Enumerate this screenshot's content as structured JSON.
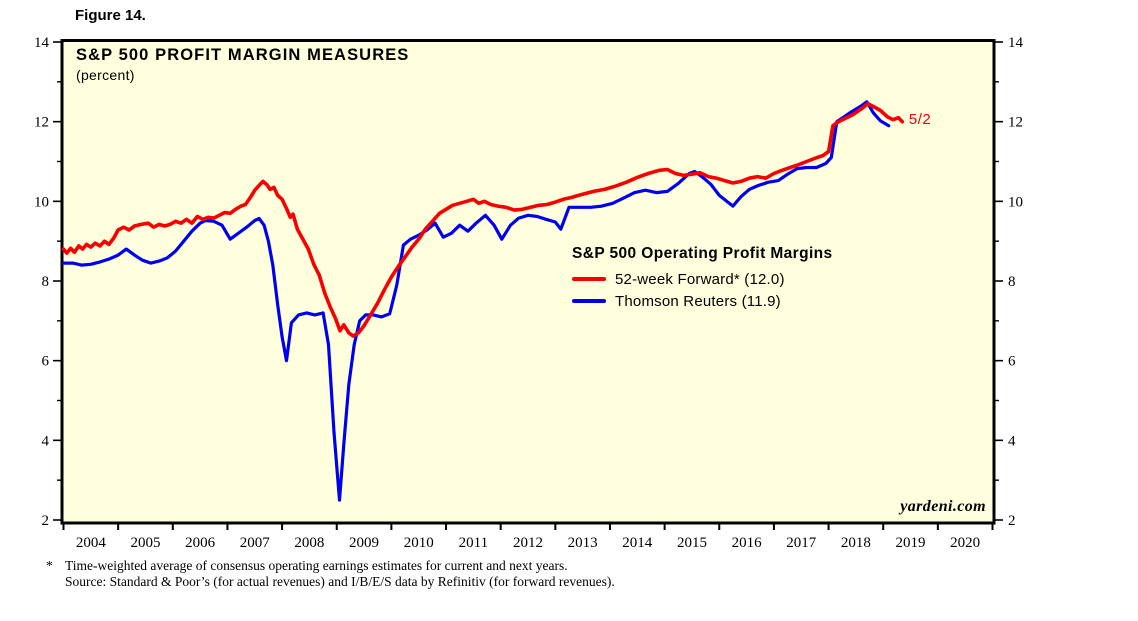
{
  "figure_label": "Figure 14.",
  "chart": {
    "title": "S&P 500 PROFIT MARGIN MEASURES",
    "subtitle": "(percent)",
    "watermark": "yardeni.com",
    "legend": {
      "title": "S&P 500 Operating Profit Margins",
      "items": [
        {
          "label": "52-week Forward* (12.0)"
        },
        {
          "label": "Thomson Reuters (11.9)"
        }
      ]
    }
  },
  "footnotes": [
    {
      "marker": "*",
      "text": "Time-weighted average of consensus operating earnings estimates for current and next years."
    },
    {
      "marker": "",
      "text": "Source: Standard & Poor’s (for actual revenues) and I/B/E/S data by Refinitiv (for forward revenues)."
    }
  ],
  "chart_data": {
    "type": "line",
    "title": "S&P 500 PROFIT MARGIN MEASURES",
    "ylabel": "percent",
    "x_range": [
      2004,
      2021
    ],
    "ylim": [
      2,
      14
    ],
    "grid": false,
    "plot_background": "#FFFFDE",
    "border_color": "#000000",
    "y_major_ticks": [
      2,
      4,
      6,
      8,
      10,
      12,
      14
    ],
    "y_minor_ticks": [
      3,
      5,
      7,
      9,
      11,
      13
    ],
    "x_tick_years": [
      "2004",
      "2005",
      "2006",
      "2007",
      "2008",
      "2009",
      "2010",
      "2011",
      "2012",
      "2013",
      "2014",
      "2015",
      "2016",
      "2017",
      "2018",
      "2019",
      "2020"
    ],
    "legend_position": "center-right",
    "annotation": {
      "text": "5/2",
      "x": 2019.47,
      "y": 12.05,
      "color": "#F80000"
    },
    "series": [
      {
        "id": "forward",
        "name": "52-week Forward* (12.0)",
        "color": "#F80000",
        "width": 3.6,
        "last_value": 12.0,
        "points": [
          [
            2004.0,
            8.8
          ],
          [
            2004.06,
            8.7
          ],
          [
            2004.13,
            8.82
          ],
          [
            2004.2,
            8.72
          ],
          [
            2004.28,
            8.88
          ],
          [
            2004.35,
            8.8
          ],
          [
            2004.42,
            8.92
          ],
          [
            2004.5,
            8.85
          ],
          [
            2004.58,
            8.95
          ],
          [
            2004.67,
            8.88
          ],
          [
            2004.75,
            9.0
          ],
          [
            2004.83,
            8.92
          ],
          [
            2004.92,
            9.08
          ],
          [
            2005.0,
            9.28
          ],
          [
            2005.1,
            9.35
          ],
          [
            2005.2,
            9.28
          ],
          [
            2005.3,
            9.38
          ],
          [
            2005.42,
            9.42
          ],
          [
            2005.55,
            9.45
          ],
          [
            2005.65,
            9.35
          ],
          [
            2005.75,
            9.42
          ],
          [
            2005.85,
            9.38
          ],
          [
            2005.95,
            9.42
          ],
          [
            2006.05,
            9.5
          ],
          [
            2006.15,
            9.45
          ],
          [
            2006.25,
            9.55
          ],
          [
            2006.35,
            9.45
          ],
          [
            2006.45,
            9.62
          ],
          [
            2006.55,
            9.55
          ],
          [
            2006.65,
            9.6
          ],
          [
            2006.75,
            9.58
          ],
          [
            2006.85,
            9.65
          ],
          [
            2006.95,
            9.72
          ],
          [
            2007.05,
            9.7
          ],
          [
            2007.15,
            9.8
          ],
          [
            2007.25,
            9.88
          ],
          [
            2007.33,
            9.92
          ],
          [
            2007.42,
            10.1
          ],
          [
            2007.5,
            10.28
          ],
          [
            2007.58,
            10.4
          ],
          [
            2007.65,
            10.5
          ],
          [
            2007.72,
            10.42
          ],
          [
            2007.78,
            10.3
          ],
          [
            2007.85,
            10.35
          ],
          [
            2007.92,
            10.15
          ],
          [
            2008.0,
            10.05
          ],
          [
            2008.08,
            9.82
          ],
          [
            2008.15,
            9.6
          ],
          [
            2008.2,
            9.68
          ],
          [
            2008.28,
            9.3
          ],
          [
            2008.38,
            9.05
          ],
          [
            2008.48,
            8.8
          ],
          [
            2008.58,
            8.42
          ],
          [
            2008.68,
            8.15
          ],
          [
            2008.78,
            7.7
          ],
          [
            2008.88,
            7.35
          ],
          [
            2008.98,
            7.05
          ],
          [
            2009.06,
            6.75
          ],
          [
            2009.13,
            6.9
          ],
          [
            2009.22,
            6.7
          ],
          [
            2009.3,
            6.62
          ],
          [
            2009.4,
            6.7
          ],
          [
            2009.5,
            6.88
          ],
          [
            2009.62,
            7.15
          ],
          [
            2009.75,
            7.45
          ],
          [
            2009.88,
            7.8
          ],
          [
            2010.0,
            8.1
          ],
          [
            2010.12,
            8.35
          ],
          [
            2010.25,
            8.6
          ],
          [
            2010.38,
            8.85
          ],
          [
            2010.5,
            9.05
          ],
          [
            2010.62,
            9.3
          ],
          [
            2010.75,
            9.5
          ],
          [
            2010.88,
            9.7
          ],
          [
            2011.0,
            9.8
          ],
          [
            2011.12,
            9.9
          ],
          [
            2011.25,
            9.95
          ],
          [
            2011.38,
            10.0
          ],
          [
            2011.5,
            10.05
          ],
          [
            2011.6,
            9.95
          ],
          [
            2011.7,
            10.0
          ],
          [
            2011.82,
            9.92
          ],
          [
            2011.95,
            9.88
          ],
          [
            2012.1,
            9.85
          ],
          [
            2012.25,
            9.78
          ],
          [
            2012.4,
            9.8
          ],
          [
            2012.55,
            9.85
          ],
          [
            2012.7,
            9.9
          ],
          [
            2012.85,
            9.92
          ],
          [
            2013.0,
            9.98
          ],
          [
            2013.15,
            10.05
          ],
          [
            2013.3,
            10.1
          ],
          [
            2013.5,
            10.18
          ],
          [
            2013.7,
            10.25
          ],
          [
            2013.9,
            10.3
          ],
          [
            2014.1,
            10.38
          ],
          [
            2014.3,
            10.48
          ],
          [
            2014.5,
            10.6
          ],
          [
            2014.7,
            10.7
          ],
          [
            2014.9,
            10.78
          ],
          [
            2015.05,
            10.8
          ],
          [
            2015.2,
            10.7
          ],
          [
            2015.35,
            10.65
          ],
          [
            2015.5,
            10.68
          ],
          [
            2015.65,
            10.72
          ],
          [
            2015.8,
            10.62
          ],
          [
            2015.95,
            10.58
          ],
          [
            2016.1,
            10.52
          ],
          [
            2016.25,
            10.46
          ],
          [
            2016.4,
            10.5
          ],
          [
            2016.55,
            10.58
          ],
          [
            2016.7,
            10.62
          ],
          [
            2016.85,
            10.58
          ],
          [
            2017.0,
            10.7
          ],
          [
            2017.15,
            10.78
          ],
          [
            2017.3,
            10.85
          ],
          [
            2017.45,
            10.92
          ],
          [
            2017.6,
            11.0
          ],
          [
            2017.75,
            11.08
          ],
          [
            2017.9,
            11.15
          ],
          [
            2018.0,
            11.25
          ],
          [
            2018.08,
            11.9
          ],
          [
            2018.18,
            12.0
          ],
          [
            2018.3,
            12.08
          ],
          [
            2018.45,
            12.18
          ],
          [
            2018.6,
            12.32
          ],
          [
            2018.72,
            12.45
          ],
          [
            2018.82,
            12.38
          ],
          [
            2018.95,
            12.28
          ],
          [
            2019.08,
            12.12
          ],
          [
            2019.18,
            12.05
          ],
          [
            2019.28,
            12.1
          ],
          [
            2019.35,
            12.0
          ]
        ]
      },
      {
        "id": "thomson",
        "name": "Thomson Reuters (11.9)",
        "color": "#0000F0",
        "width": 3.2,
        "last_value": 11.9,
        "points": [
          [
            2004.0,
            8.45
          ],
          [
            2004.17,
            8.45
          ],
          [
            2004.33,
            8.4
          ],
          [
            2004.5,
            8.42
          ],
          [
            2004.67,
            8.48
          ],
          [
            2004.83,
            8.55
          ],
          [
            2005.0,
            8.65
          ],
          [
            2005.15,
            8.8
          ],
          [
            2005.3,
            8.65
          ],
          [
            2005.45,
            8.52
          ],
          [
            2005.6,
            8.45
          ],
          [
            2005.75,
            8.5
          ],
          [
            2005.9,
            8.58
          ],
          [
            2006.05,
            8.75
          ],
          [
            2006.2,
            9.0
          ],
          [
            2006.35,
            9.25
          ],
          [
            2006.5,
            9.45
          ],
          [
            2006.6,
            9.52
          ],
          [
            2006.75,
            9.5
          ],
          [
            2006.9,
            9.4
          ],
          [
            2007.05,
            9.05
          ],
          [
            2007.2,
            9.2
          ],
          [
            2007.35,
            9.35
          ],
          [
            2007.5,
            9.52
          ],
          [
            2007.58,
            9.57
          ],
          [
            2007.67,
            9.4
          ],
          [
            2007.75,
            9.0
          ],
          [
            2007.83,
            8.4
          ],
          [
            2007.92,
            7.4
          ],
          [
            2008.0,
            6.6
          ],
          [
            2008.08,
            6.0
          ],
          [
            2008.17,
            6.95
          ],
          [
            2008.3,
            7.15
          ],
          [
            2008.45,
            7.2
          ],
          [
            2008.6,
            7.15
          ],
          [
            2008.75,
            7.2
          ],
          [
            2008.85,
            6.4
          ],
          [
            2008.95,
            4.2
          ],
          [
            2009.05,
            2.5
          ],
          [
            2009.13,
            3.9
          ],
          [
            2009.22,
            5.4
          ],
          [
            2009.32,
            6.4
          ],
          [
            2009.42,
            7.0
          ],
          [
            2009.53,
            7.15
          ],
          [
            2009.67,
            7.15
          ],
          [
            2009.82,
            7.1
          ],
          [
            2009.97,
            7.18
          ],
          [
            2010.1,
            7.9
          ],
          [
            2010.22,
            8.9
          ],
          [
            2010.35,
            9.05
          ],
          [
            2010.5,
            9.15
          ],
          [
            2010.65,
            9.28
          ],
          [
            2010.8,
            9.45
          ],
          [
            2010.95,
            9.1
          ],
          [
            2011.1,
            9.2
          ],
          [
            2011.25,
            9.4
          ],
          [
            2011.4,
            9.25
          ],
          [
            2011.55,
            9.45
          ],
          [
            2011.72,
            9.65
          ],
          [
            2011.88,
            9.4
          ],
          [
            2012.02,
            9.05
          ],
          [
            2012.18,
            9.4
          ],
          [
            2012.33,
            9.58
          ],
          [
            2012.5,
            9.65
          ],
          [
            2012.67,
            9.62
          ],
          [
            2012.83,
            9.55
          ],
          [
            2013.0,
            9.48
          ],
          [
            2013.1,
            9.3
          ],
          [
            2013.25,
            9.85
          ],
          [
            2013.45,
            9.85
          ],
          [
            2013.65,
            9.85
          ],
          [
            2013.85,
            9.88
          ],
          [
            2014.05,
            9.95
          ],
          [
            2014.25,
            10.08
          ],
          [
            2014.45,
            10.22
          ],
          [
            2014.65,
            10.28
          ],
          [
            2014.85,
            10.22
          ],
          [
            2015.05,
            10.25
          ],
          [
            2015.25,
            10.45
          ],
          [
            2015.45,
            10.7
          ],
          [
            2015.55,
            10.75
          ],
          [
            2015.7,
            10.6
          ],
          [
            2015.85,
            10.42
          ],
          [
            2016.0,
            10.15
          ],
          [
            2016.25,
            9.88
          ],
          [
            2016.4,
            10.12
          ],
          [
            2016.55,
            10.3
          ],
          [
            2016.72,
            10.4
          ],
          [
            2016.9,
            10.48
          ],
          [
            2017.08,
            10.52
          ],
          [
            2017.25,
            10.68
          ],
          [
            2017.42,
            10.82
          ],
          [
            2017.6,
            10.85
          ],
          [
            2017.78,
            10.85
          ],
          [
            2017.95,
            10.95
          ],
          [
            2018.05,
            11.1
          ],
          [
            2018.15,
            12.0
          ],
          [
            2018.28,
            12.12
          ],
          [
            2018.42,
            12.25
          ],
          [
            2018.58,
            12.38
          ],
          [
            2018.7,
            12.5
          ],
          [
            2018.82,
            12.22
          ],
          [
            2018.95,
            12.02
          ],
          [
            2019.1,
            11.9
          ]
        ]
      }
    ]
  }
}
